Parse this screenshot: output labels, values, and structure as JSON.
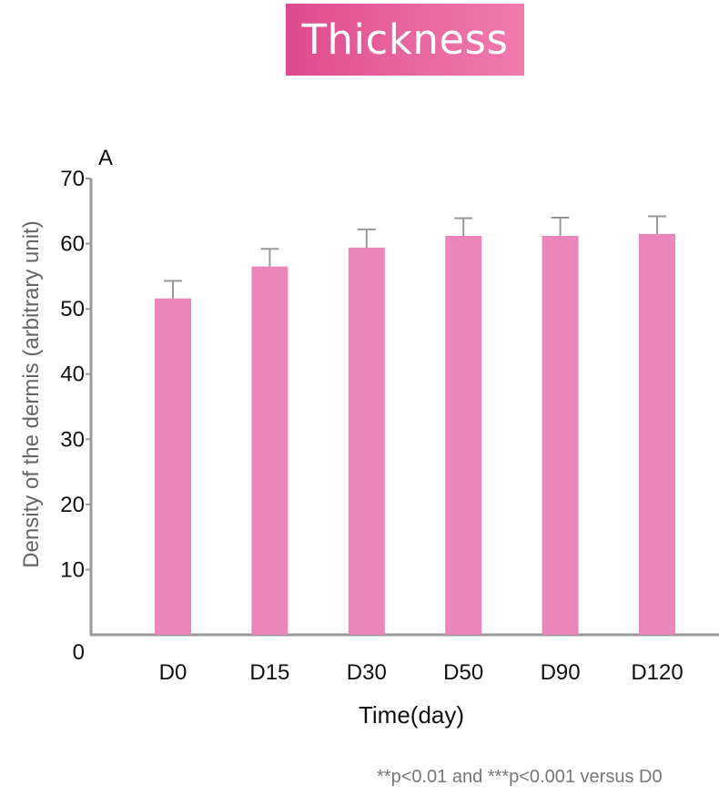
{
  "banner": {
    "title": "Thickness"
  },
  "panel_label": "A",
  "footnote": "**p<0.01 and ***p<0.001 versus D0",
  "colors": {
    "bar": "#ea86ba",
    "error_bar": "#999999",
    "axis": "#999999",
    "banner": "#e45996"
  },
  "chart_data": {
    "type": "bar",
    "title": "Thickness",
    "xlabel": "Time(day)",
    "ylabel": "Density of the dermis (arbitrary unit)",
    "categories": [
      "D0",
      "D15",
      "D30",
      "D50",
      "D90",
      "D120"
    ],
    "values": [
      51.6,
      56.5,
      59.4,
      61.2,
      61.2,
      61.5
    ],
    "errors": [
      2.7,
      2.7,
      2.8,
      2.7,
      2.8,
      2.7
    ],
    "ylim": [
      0,
      70
    ],
    "yticks": [
      0,
      10,
      20,
      30,
      40,
      50,
      60,
      70
    ],
    "grid": false,
    "legend": "none"
  }
}
